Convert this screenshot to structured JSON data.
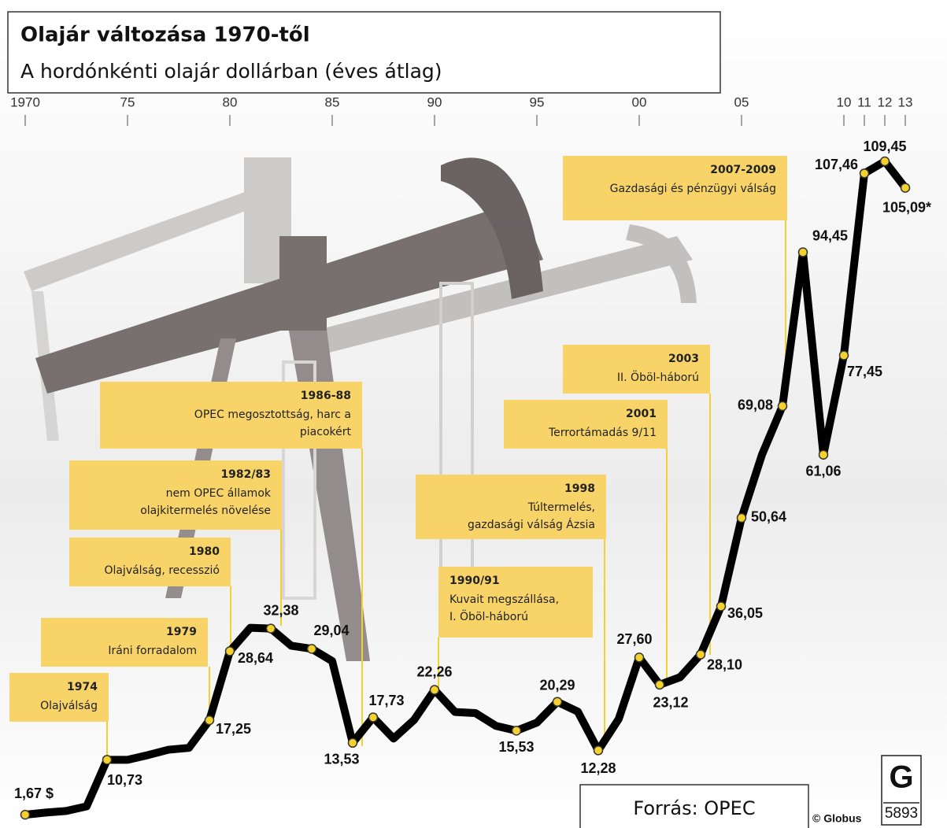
{
  "chart_data": {
    "type": "line",
    "title": "Olajár változása 1970-től",
    "subtitle": "A hordónkénti olajár dollárban (éves átlag)",
    "x": [
      1970,
      1971,
      1972,
      1973,
      1974,
      1975,
      1976,
      1977,
      1978,
      1979,
      1980,
      1981,
      1982,
      1983,
      1984,
      1985,
      1986,
      1987,
      1988,
      1989,
      1990,
      1991,
      1992,
      1993,
      1994,
      1995,
      1996,
      1997,
      1998,
      1999,
      2000,
      2001,
      2002,
      2003,
      2004,
      2005,
      2006,
      2007,
      2008,
      2009,
      2010,
      2011,
      2012,
      2013
    ],
    "values": [
      1.67,
      2.03,
      2.29,
      3.05,
      10.73,
      10.73,
      11.51,
      12.39,
      12.7,
      17.25,
      28.64,
      32.51,
      32.38,
      29.55,
      29.04,
      27.01,
      13.53,
      17.73,
      14.24,
      17.31,
      22.26,
      18.62,
      18.44,
      16.33,
      15.53,
      16.86,
      20.29,
      18.68,
      12.28,
      17.47,
      27.6,
      23.12,
      24.36,
      28.1,
      36.05,
      50.64,
      61.08,
      69.08,
      94.45,
      61.06,
      77.45,
      107.46,
      109.45,
      105.09
    ],
    "value_labels": [
      "1,67 $",
      null,
      null,
      null,
      "10,73",
      null,
      null,
      null,
      null,
      "17,25",
      "28,64",
      null,
      "32,38",
      null,
      "29,04",
      null,
      "13,53",
      "17,73",
      null,
      null,
      "22,26",
      null,
      null,
      null,
      "15,53",
      null,
      "20,29",
      null,
      "12,28",
      null,
      "27,60",
      "23,12",
      null,
      "28,10",
      "36,05",
      "50,64",
      null,
      "69,08",
      "94,45",
      "61,06",
      "77,45",
      "107,46",
      "109,45",
      "105,09*"
    ],
    "color": "#000000",
    "marker_color": "#f5d130",
    "xlim": [
      1970,
      2013
    ],
    "xticks": [
      1970,
      {
        "value": 1975,
        "label": "75"
      },
      {
        "value": 1980,
        "label": "80"
      },
      {
        "value": 1985,
        "label": "85"
      },
      {
        "value": 1990,
        "label": "90"
      },
      {
        "value": 1995,
        "label": "95"
      },
      {
        "value": 2000,
        "label": "00"
      },
      {
        "value": 2005,
        "label": "05"
      },
      {
        "value": 2010,
        "label": "10"
      },
      {
        "value": 2011,
        "label": "11"
      },
      {
        "value": 2012,
        "label": "12"
      },
      {
        "value": 2013,
        "label": "13"
      }
    ],
    "annotations": [
      {
        "title": "1974",
        "lines": [
          "Olajválság"
        ]
      },
      {
        "title": "1979",
        "lines": [
          "Iráni forradalom"
        ]
      },
      {
        "title": "1980",
        "lines": [
          "Olajválság, recesszió"
        ]
      },
      {
        "title": "1982/83",
        "lines": [
          "nem OPEC államok",
          "olajkitermelés növelése"
        ]
      },
      {
        "title": "1986-88",
        "lines": [
          "OPEC megosztottság, harc a",
          "piacokért"
        ]
      },
      {
        "title": "1990/91",
        "lines": [
          "Kuvait megszállása,",
          "I. Öböl-háború"
        ]
      },
      {
        "title": "1998",
        "lines": [
          "Túltermelés,",
          "gazdasági válság Ázsia"
        ]
      },
      {
        "title": "2001",
        "lines": [
          "Terrortámadás 9/11"
        ]
      },
      {
        "title": "2003",
        "lines": [
          "II. Öböl-háború"
        ]
      },
      {
        "title": "2007-2009",
        "lines": [
          "Gazdasági és pénzügyi válság"
        ]
      }
    ],
    "source": "Forrás: OPEC",
    "credit": "© Globus",
    "logo_letter": "G",
    "logo_number": "5893"
  }
}
